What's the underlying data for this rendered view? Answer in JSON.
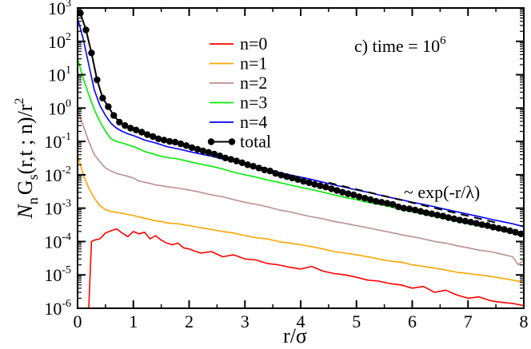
{
  "chart_data": {
    "type": "line",
    "title": "c) time = 10^6",
    "title_text": "c) time = 10",
    "title_exponent": "6",
    "xlabel": "r/σ",
    "ylabel": "N_n G_s(r,t ; n)/r^2",
    "ylabel_parts": {
      "N": "N",
      "n": "n",
      "G": "G",
      "s": "s",
      "args": "(r,t ; n)/r",
      "pow": "2"
    },
    "scale_y": "log",
    "xlim": [
      0,
      8
    ],
    "ylim": [
      1e-06,
      1000
    ],
    "x_ticks": [
      0,
      1,
      2,
      3,
      4,
      5,
      6,
      7,
      8
    ],
    "x_tick_labels": [
      "0",
      "1",
      "2",
      "3",
      "4",
      "5",
      "6",
      "7",
      "8"
    ],
    "y_ticks": [
      {
        "value": 1000,
        "base": "10",
        "exp": "3"
      },
      {
        "value": 100,
        "base": "10",
        "exp": "2"
      },
      {
        "value": 10,
        "base": "10",
        "exp": "1"
      },
      {
        "value": 1,
        "base": "10",
        "exp": "0"
      },
      {
        "value": 0.1,
        "base": "10",
        "exp": "-1"
      },
      {
        "value": 0.01,
        "base": "10",
        "exp": "-2"
      },
      {
        "value": 0.001,
        "base": "10",
        "exp": "-3"
      },
      {
        "value": 0.0001,
        "base": "10",
        "exp": "-4"
      },
      {
        "value": 1e-05,
        "base": "10",
        "exp": "-5"
      },
      {
        "value": 1e-06,
        "base": "10",
        "exp": "-6"
      }
    ],
    "legend": {
      "position": "top-center"
    },
    "annotation": {
      "text": "~ exp(-r/λ)",
      "line_x": [
        4.5,
        7.5
      ],
      "line_y": [
        0.0058,
        0.00037
      ]
    },
    "series": [
      {
        "name": "n=0",
        "label": "n=0",
        "color": "#ff0000",
        "markers": false,
        "x": [
          0.2,
          0.25,
          0.3,
          0.4,
          0.5,
          0.6,
          0.7,
          0.8,
          0.9,
          1.0,
          1.1,
          1.2,
          1.3,
          1.4,
          1.5,
          1.6,
          1.7,
          1.8,
          1.9,
          2.0,
          2.2,
          2.4,
          2.6,
          2.8,
          3.0,
          3.2,
          3.4,
          3.6,
          3.8,
          4.0,
          4.2,
          4.4,
          4.6,
          4.8,
          5.0,
          5.2,
          5.4,
          5.6,
          5.8,
          6.0,
          6.2,
          6.4,
          6.6,
          6.8,
          7.0,
          7.2,
          7.4,
          7.6,
          7.8,
          8.0
        ],
        "y": [
          1e-06,
          0.0001,
          0.00011,
          0.00012,
          0.00018,
          0.00021,
          0.00024,
          0.00018,
          0.00014,
          0.0002,
          0.00017,
          0.00019,
          0.00012,
          0.00015,
          0.00011,
          9e-05,
          8e-05,
          9e-05,
          6.5e-05,
          6e-05,
          4.5e-05,
          5e-05,
          3.5e-05,
          4e-05,
          3e-05,
          2.8e-05,
          2.2e-05,
          2e-05,
          1.7e-05,
          1.5e-05,
          1.8e-05,
          1.3e-05,
          1.1e-05,
          1e-05,
          8.5e-06,
          7e-06,
          6.5e-06,
          5.5e-06,
          5e-06,
          4e-06,
          4.5e-06,
          3e-06,
          3.5e-06,
          2.5e-06,
          2e-06,
          2.2e-06,
          1.7e-06,
          1.5e-06,
          1.4e-06,
          1.2e-06
        ]
      },
      {
        "name": "n=1",
        "label": "n=1",
        "color": "#ffa500",
        "markers": false,
        "x": [
          0.0,
          0.1,
          0.2,
          0.3,
          0.4,
          0.5,
          0.6,
          0.7,
          0.8,
          0.9,
          1.0,
          1.1,
          1.2,
          1.3,
          1.4,
          1.5,
          1.6,
          1.8,
          2.0,
          2.2,
          2.4,
          2.6,
          2.8,
          3.0,
          3.2,
          3.4,
          3.6,
          3.8,
          4.0,
          4.2,
          4.4,
          4.6,
          4.8,
          5.0,
          5.2,
          5.4,
          5.6,
          5.8,
          6.0,
          6.2,
          6.4,
          6.6,
          6.8,
          7.0,
          7.2,
          7.4,
          7.6,
          7.8,
          8.0
        ],
        "y": [
          0.04,
          0.01,
          0.004,
          0.002,
          0.0012,
          0.0009,
          0.0008,
          0.00075,
          0.0007,
          0.00065,
          0.0006,
          0.00055,
          0.0005,
          0.00046,
          0.00042,
          0.0004,
          0.00036,
          0.00034,
          0.0003,
          0.00026,
          0.00023,
          0.0002,
          0.00018,
          0.00015,
          0.00013,
          0.00012,
          0.0001,
          9e-05,
          8e-05,
          7e-05,
          6e-05,
          5e-05,
          4.5e-05,
          4e-05,
          3.5e-05,
          3e-05,
          2.6e-05,
          2.4e-05,
          2e-05,
          1.8e-05,
          1.6e-05,
          1.4e-05,
          1.2e-05,
          1.1e-05,
          1e-05,
          9e-06,
          8e-06,
          7e-06,
          6e-06
        ]
      },
      {
        "name": "n=2",
        "label": "n=2",
        "color": "#bc8f8f",
        "markers": false,
        "x": [
          0.0,
          0.1,
          0.2,
          0.3,
          0.4,
          0.5,
          0.6,
          0.7,
          0.8,
          0.9,
          1.0,
          1.1,
          1.2,
          1.3,
          1.4,
          1.5,
          1.6,
          1.8,
          2.0,
          2.2,
          2.4,
          2.6,
          2.8,
          3.0,
          3.2,
          3.4,
          3.6,
          3.8,
          4.0,
          4.2,
          4.4,
          4.6,
          4.8,
          5.0,
          5.2,
          5.4,
          5.6,
          5.8,
          6.0,
          6.2,
          6.4,
          6.6,
          6.8,
          7.0,
          7.2,
          7.4,
          7.6,
          7.8,
          7.9,
          8.0
        ],
        "y": [
          0.9,
          0.3,
          0.1,
          0.04,
          0.025,
          0.016,
          0.013,
          0.011,
          0.01,
          0.009,
          0.008,
          0.0065,
          0.006,
          0.0055,
          0.005,
          0.0047,
          0.0044,
          0.004,
          0.0035,
          0.003,
          0.0025,
          0.0022,
          0.0018,
          0.0015,
          0.0013,
          0.0011,
          0.0009,
          0.00078,
          0.00065,
          0.00055,
          0.00048,
          0.0004,
          0.00035,
          0.0003,
          0.00026,
          0.00022,
          0.00019,
          0.00016,
          0.00014,
          0.00012,
          0.0001,
          9e-05,
          7.5e-05,
          6.5e-05,
          5.5e-05,
          5e-05,
          4.2e-05,
          3.5e-05,
          2e-05,
          2.8e-05
        ]
      },
      {
        "name": "n=3",
        "label": "n=3",
        "color": "#00ee00",
        "markers": false,
        "x": [
          0.0,
          0.1,
          0.2,
          0.3,
          0.4,
          0.5,
          0.6,
          0.7,
          0.8,
          0.9,
          1.0,
          1.1,
          1.2,
          1.3,
          1.4,
          1.5,
          1.6,
          1.8,
          2.0,
          2.2,
          2.4,
          2.6,
          2.8,
          3.0,
          3.2,
          3.4,
          3.6,
          3.8,
          4.0,
          4.2,
          4.4,
          4.6,
          4.8,
          5.0,
          5.2,
          5.4,
          5.6,
          5.8,
          6.0,
          6.2,
          6.4,
          6.6,
          6.8,
          7.0,
          7.2,
          7.4,
          7.6,
          7.8,
          8.0
        ],
        "y": [
          30,
          8,
          2.5,
          0.9,
          0.4,
          0.2,
          0.12,
          0.1,
          0.09,
          0.08,
          0.07,
          0.06,
          0.05,
          0.045,
          0.04,
          0.036,
          0.033,
          0.03,
          0.025,
          0.021,
          0.018,
          0.015,
          0.012,
          0.01,
          0.0085,
          0.007,
          0.006,
          0.005,
          0.0042,
          0.0036,
          0.003,
          0.0025,
          0.0021,
          0.0018,
          0.0015,
          0.0013,
          0.0011,
          0.0009,
          0.00078,
          0.00066,
          0.00056,
          0.00048,
          0.0004,
          0.00034,
          0.00029,
          0.00025,
          0.00021,
          0.00018,
          0.00014
        ]
      },
      {
        "name": "n=4",
        "label": "n=4",
        "color": "#0000ff",
        "markers": false,
        "x": [
          0.0,
          0.1,
          0.2,
          0.3,
          0.4,
          0.5,
          0.6,
          0.7,
          0.8,
          0.9,
          1.0,
          1.1,
          1.2,
          1.3,
          1.4,
          1.5,
          1.6,
          1.8,
          2.0,
          2.2,
          2.4,
          2.6,
          2.8,
          3.0,
          3.2,
          3.4,
          3.6,
          3.8,
          4.0,
          4.2,
          4.4,
          4.6,
          4.8,
          5.0,
          5.2,
          5.4,
          5.6,
          5.8,
          6.0,
          6.2,
          6.4,
          6.6,
          6.8,
          7.0,
          7.2,
          7.4,
          7.6,
          7.8,
          8.0
        ],
        "y": [
          500,
          120,
          20,
          3.5,
          1.2,
          0.6,
          0.35,
          0.25,
          0.2,
          0.17,
          0.15,
          0.13,
          0.11,
          0.1,
          0.09,
          0.08,
          0.07,
          0.06,
          0.05,
          0.042,
          0.036,
          0.03,
          0.025,
          0.021,
          0.018,
          0.015,
          0.012,
          0.01,
          0.0085,
          0.0072,
          0.006,
          0.005,
          0.0042,
          0.0035,
          0.003,
          0.0025,
          0.0021,
          0.0018,
          0.0015,
          0.0013,
          0.0011,
          0.00092,
          0.00078,
          0.00066,
          0.00056,
          0.00047,
          0.0004,
          0.00034,
          0.00028
        ]
      },
      {
        "name": "total",
        "label": "total",
        "color": "#000000",
        "markers": true,
        "x": [
          0.05,
          0.15,
          0.25,
          0.35,
          0.45,
          0.55,
          0.65,
          0.75,
          0.85,
          0.95,
          1.05,
          1.15,
          1.25,
          1.35,
          1.45,
          1.55,
          1.65,
          1.75,
          1.85,
          1.95,
          2.05,
          2.15,
          2.25,
          2.35,
          2.45,
          2.55,
          2.65,
          2.75,
          2.85,
          2.95,
          3.05,
          3.15,
          3.25,
          3.35,
          3.45,
          3.55,
          3.65,
          3.75,
          3.85,
          3.95,
          4.05,
          4.15,
          4.25,
          4.35,
          4.45,
          4.55,
          4.65,
          4.75,
          4.85,
          4.95,
          5.05,
          5.15,
          5.25,
          5.35,
          5.45,
          5.55,
          5.65,
          5.75,
          5.85,
          5.95,
          6.05,
          6.15,
          6.25,
          6.35,
          6.45,
          6.55,
          6.65,
          6.75,
          6.85,
          6.95,
          7.05,
          7.15,
          7.25,
          7.35,
          7.45,
          7.55,
          7.65,
          7.75,
          7.85,
          7.95
        ],
        "y": [
          700,
          220,
          45,
          7,
          2,
          1.1,
          0.6,
          0.38,
          0.3,
          0.25,
          0.22,
          0.19,
          0.16,
          0.14,
          0.12,
          0.11,
          0.1,
          0.095,
          0.085,
          0.075,
          0.065,
          0.058,
          0.052,
          0.047,
          0.042,
          0.037,
          0.032,
          0.029,
          0.026,
          0.023,
          0.02,
          0.018,
          0.016,
          0.014,
          0.013,
          0.011,
          0.0098,
          0.0088,
          0.008,
          0.0072,
          0.0064,
          0.0058,
          0.0052,
          0.0047,
          0.0043,
          0.0038,
          0.0034,
          0.003,
          0.0027,
          0.0025,
          0.0022,
          0.002,
          0.0018,
          0.0016,
          0.0015,
          0.0014,
          0.0013,
          0.0011,
          0.001,
          0.00095,
          0.00088,
          0.0008,
          0.00073,
          0.00068,
          0.00062,
          0.00058,
          0.00052,
          0.00048,
          0.00044,
          0.00041,
          0.00038,
          0.00035,
          0.00032,
          0.0003,
          0.00027,
          0.00025,
          0.00023,
          0.00021,
          0.00019,
          0.00017
        ]
      }
    ]
  }
}
